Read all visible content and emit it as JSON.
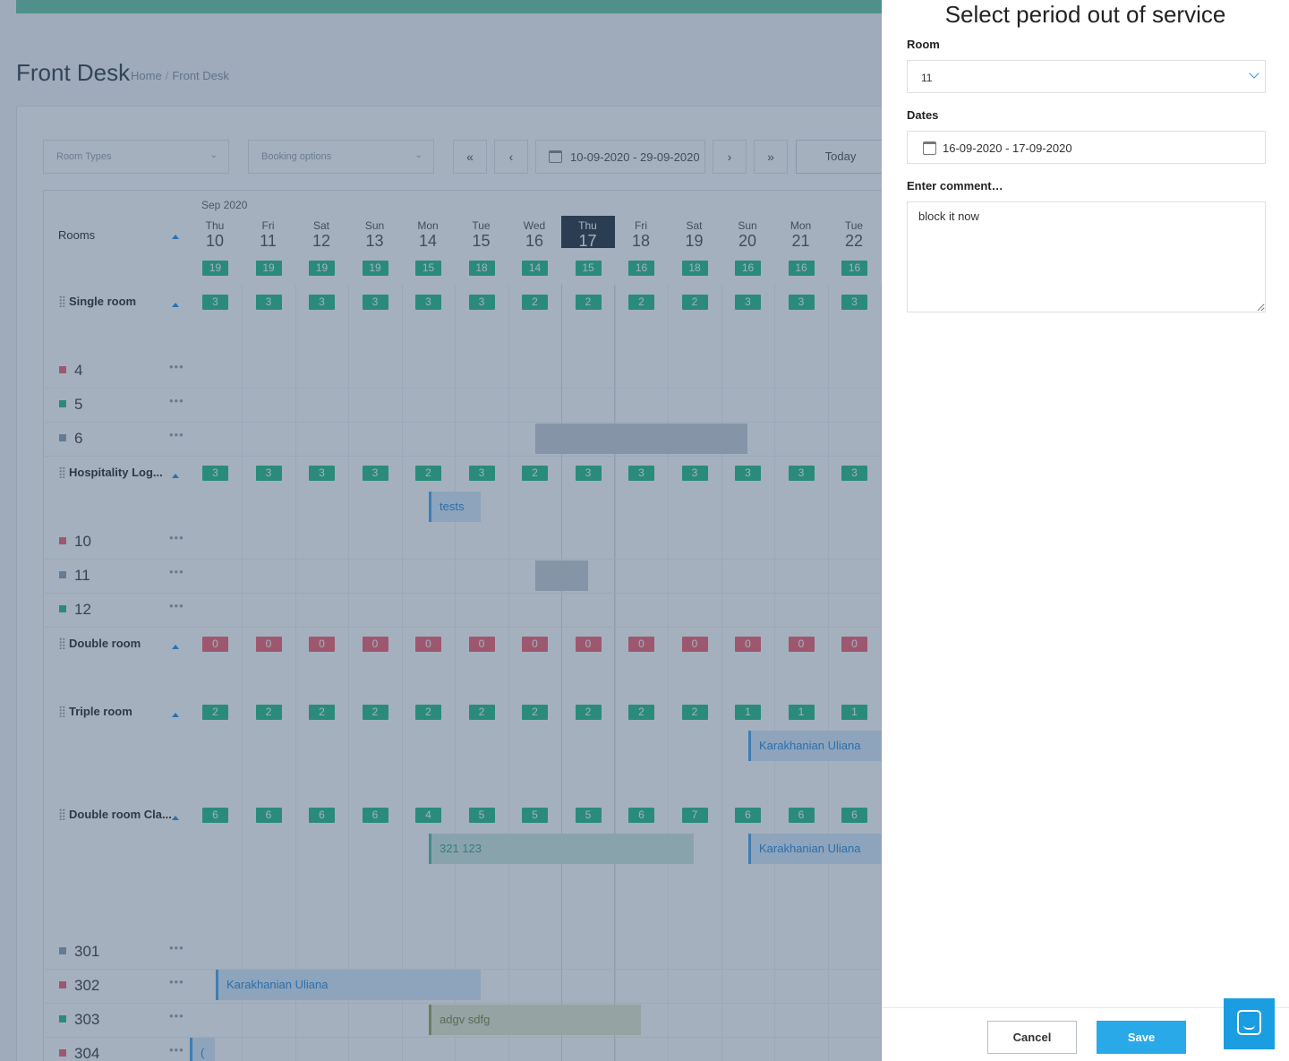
{
  "page": {
    "title": "Front Desk",
    "breadcrumb": [
      "Home",
      "Front Desk"
    ]
  },
  "toolbar": {
    "room_types_placeholder": "Room Types",
    "booking_options_placeholder": "Booking options",
    "first_label": "«",
    "prev_label": "‹",
    "date_range": "10-09-2020 - 29-09-2020",
    "next_label": "›",
    "last_label": "»",
    "today_label": "Today"
  },
  "calendar": {
    "month_label": "Sep 2020",
    "rooms_header": "Rooms",
    "days": [
      {
        "dow": "Thu",
        "num": "10",
        "avail": "19"
      },
      {
        "dow": "Fri",
        "num": "11",
        "avail": "19"
      },
      {
        "dow": "Sat",
        "num": "12",
        "avail": "19"
      },
      {
        "dow": "Sun",
        "num": "13",
        "avail": "19"
      },
      {
        "dow": "Mon",
        "num": "14",
        "avail": "15"
      },
      {
        "dow": "Tue",
        "num": "15",
        "avail": "18"
      },
      {
        "dow": "Wed",
        "num": "16",
        "avail": "14"
      },
      {
        "dow": "Thu",
        "num": "17",
        "avail": "15",
        "today": true
      },
      {
        "dow": "Fri",
        "num": "18",
        "avail": "16"
      },
      {
        "dow": "Sat",
        "num": "19",
        "avail": "18"
      },
      {
        "dow": "Sun",
        "num": "20",
        "avail": "16"
      },
      {
        "dow": "Mon",
        "num": "21",
        "avail": "16"
      },
      {
        "dow": "Tue",
        "num": "22",
        "avail": "16"
      }
    ],
    "groups": [
      {
        "name": "Single room",
        "counts": [
          "3",
          "3",
          "3",
          "3",
          "3",
          "3",
          "2",
          "2",
          "2",
          "2",
          "3",
          "3",
          "3"
        ],
        "color": "green"
      },
      {
        "name": "Hospitality Log...",
        "counts": [
          "3",
          "3",
          "3",
          "3",
          "2",
          "3",
          "2",
          "3",
          "3",
          "3",
          "3",
          "3",
          "3"
        ],
        "color": "green"
      },
      {
        "name": "Double room",
        "counts": [
          "0",
          "0",
          "0",
          "0",
          "0",
          "0",
          "0",
          "0",
          "0",
          "0",
          "0",
          "0",
          "0"
        ],
        "color": "red"
      },
      {
        "name": "Triple room",
        "counts": [
          "2",
          "2",
          "2",
          "2",
          "2",
          "2",
          "2",
          "2",
          "2",
          "2",
          "1",
          "1",
          "1"
        ],
        "color": "green"
      },
      {
        "name": "Double room Cla...",
        "counts": [
          "6",
          "6",
          "6",
          "6",
          "4",
          "5",
          "5",
          "5",
          "6",
          "7",
          "6",
          "6",
          "6"
        ],
        "color": "green"
      }
    ],
    "rooms": [
      {
        "num": "4",
        "status_color": "#f26877"
      },
      {
        "num": "5",
        "status_color": "#2bbf8a"
      },
      {
        "num": "6",
        "status_color": "#8fa4b8"
      },
      {
        "num": "10",
        "status_color": "#f26877"
      },
      {
        "num": "11",
        "status_color": "#8fa4b8"
      },
      {
        "num": "12",
        "status_color": "#2bbf8a"
      },
      {
        "num": "301",
        "status_color": "#8fa4b8"
      },
      {
        "num": "302",
        "status_color": "#f26877"
      },
      {
        "num": "303",
        "status_color": "#2bbf8a"
      },
      {
        "num": "304",
        "status_color": "#f26877"
      }
    ],
    "bookings": {
      "tests": "tests",
      "karakhanian_1": "Karakhanian Uliana",
      "code_321": "321 123",
      "karakhanian_2": "Karakhanian Uliana",
      "karakhanian_3": "Karakhanian Uliana",
      "adgv": "adgv sdfg",
      "partial_304": "("
    }
  },
  "panel": {
    "title": "Select period out of service",
    "room_label": "Room",
    "room_value": "11",
    "dates_label": "Dates",
    "dates_value": "16-09-2020 - 17-09-2020",
    "comment_label": "Enter comment…",
    "comment_value": "block it now",
    "cancel_label": "Cancel",
    "save_label": "Save"
  },
  "colors": {
    "accent": "#29a9e8",
    "available": "#2bbf8a",
    "unavailable": "#f26877",
    "topbar": "#6cc8a8"
  },
  "icons": {
    "calendar": "calendar-icon",
    "dropdown": "chevron-down-icon",
    "chat": "chat-icon",
    "more": "more-dots-icon",
    "drag": "drag-handle-icon"
  }
}
